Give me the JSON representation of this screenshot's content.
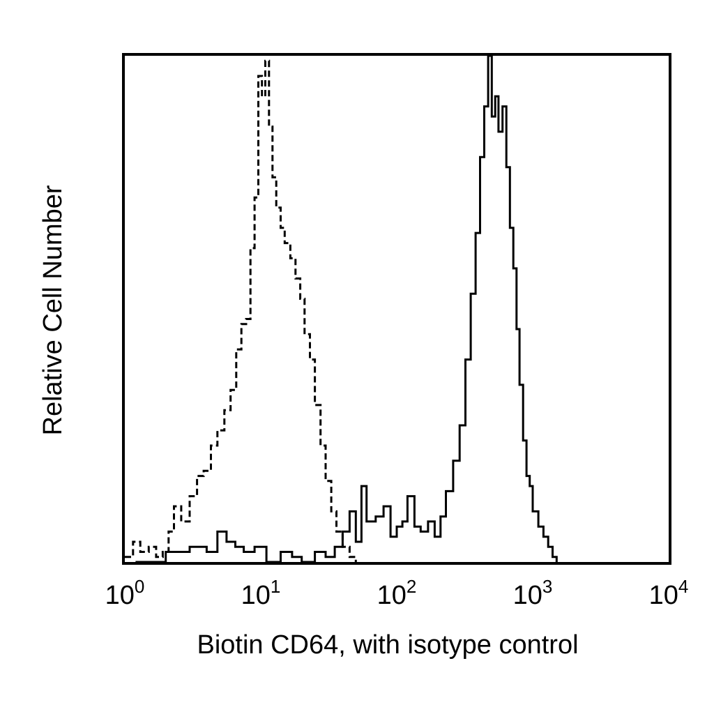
{
  "chart_data": {
    "type": "line",
    "title": "",
    "xlabel": "Biotin CD64, with isotype control",
    "ylabel": "Relative Cell Number",
    "x_scale": "log",
    "xlim": [
      1,
      10000
    ],
    "ylim": [
      0,
      100
    ],
    "grid": false,
    "legend": "none",
    "x_ticks": [
      {
        "value": 1,
        "base": "10",
        "exp": "0"
      },
      {
        "value": 10,
        "base": "10",
        "exp": "1"
      },
      {
        "value": 100,
        "base": "10",
        "exp": "2"
      },
      {
        "value": 1000,
        "base": "10",
        "exp": "3"
      },
      {
        "value": 10000,
        "base": "10",
        "exp": "4"
      }
    ],
    "series": [
      {
        "style": "dashed",
        "color": "#000000",
        "x": [
          1.0,
          1.15,
          1.3,
          1.5,
          1.7,
          1.9,
          2.1,
          2.3,
          2.6,
          3.0,
          3.4,
          3.8,
          4.3,
          4.8,
          5.4,
          6.0,
          6.6,
          7.2,
          7.8,
          8.4,
          9.0,
          9.6,
          10.2,
          10.8,
          11.5,
          12.2,
          13.0,
          14.0,
          15.0,
          16.5,
          18.0,
          19.5,
          21.0,
          23.0,
          25.0,
          27.5,
          30.0,
          33.0,
          36.0,
          40.0,
          45.0,
          50.0
        ],
        "y": [
          1,
          4,
          2,
          3,
          1,
          2,
          6,
          11,
          8,
          13,
          17,
          18,
          23,
          26,
          30,
          34,
          42,
          47,
          48,
          62,
          72,
          96,
          92,
          99,
          86,
          76,
          70,
          66,
          63,
          60,
          56,
          52,
          45,
          40,
          31,
          23,
          16,
          10,
          6,
          3,
          1,
          0
        ]
      },
      {
        "style": "solid",
        "color": "#000000",
        "x": [
          1.2,
          2.0,
          3.0,
          4.0,
          4.8,
          5.6,
          6.5,
          7.5,
          9.0,
          11.0,
          14.0,
          17.0,
          20.0,
          25.0,
          30.0,
          35.0,
          40.0,
          45.0,
          50.0,
          55.0,
          60.0,
          70.0,
          80.0,
          90.0,
          100.0,
          110.0,
          120.0,
          135.0,
          150.0,
          170.0,
          190.0,
          210.0,
          230.0,
          260.0,
          290.0,
          320.0,
          350.0,
          380.0,
          410.0,
          440.0,
          470.0,
          500.0,
          530.0,
          560.0,
          600.0,
          640.0,
          680.0,
          720.0,
          760.0,
          800.0,
          850.0,
          900.0,
          950.0,
          1000.0,
          1100.0,
          1200.0,
          1300.0,
          1400.0,
          1500.0
        ],
        "y": [
          0,
          2,
          3,
          2,
          6,
          4,
          3,
          2,
          3,
          0,
          2,
          1,
          0,
          2,
          1,
          3,
          6,
          10,
          4,
          15,
          8,
          9,
          11,
          5,
          7,
          8,
          13,
          7,
          6,
          8,
          5,
          9,
          14,
          20,
          27,
          40,
          53,
          65,
          80,
          90,
          100,
          88,
          92,
          85,
          90,
          78,
          66,
          58,
          46,
          35,
          24,
          17,
          15,
          10,
          7,
          5,
          3,
          1,
          0
        ]
      }
    ]
  }
}
